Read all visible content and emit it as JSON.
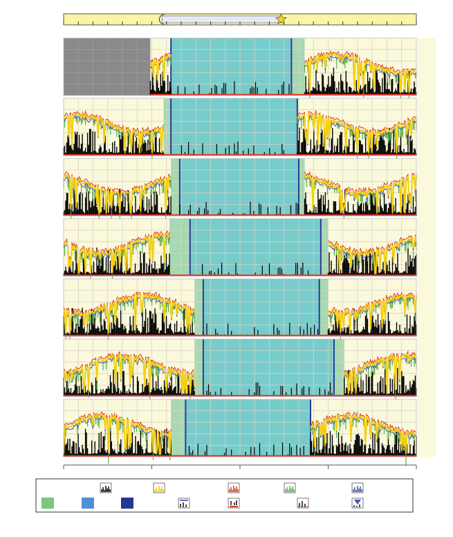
{
  "chart_data": {
    "type": "area",
    "title": "",
    "xlabel": "",
    "ylabel": "",
    "grid": true,
    "x_range": [
      0,
      24
    ],
    "y_range": [
      0,
      1
    ],
    "colors": {
      "background": "#fbf9dc",
      "grid": "#d7d3c4",
      "rest": "#78cbcb",
      "transition": "#a7d8b4",
      "boundary": "#2c3a94",
      "activity": "#000000",
      "trace_main": "#f5cf10",
      "trace_red": "#d83a2a",
      "trace_blue": "#3d57b8",
      "trace_green": "#57b04a",
      "baseline": "#e0321c",
      "legend_green": "#7cc67e",
      "legend_lightblue": "#4f8fd6",
      "legend_darkblue": "#283597"
    },
    "daylight_bar": {
      "sunset_icon": "crescent-moon-icon",
      "sunrise_icon": "sun-icon",
      "night_start": 6.7,
      "night_end": 14.8
    },
    "panels": [
      {
        "missing_until": 5.9,
        "rest_start": 7.3,
        "rest_end": 15.5,
        "trans_before": 0.0,
        "trans_after": 0.9
      },
      {
        "missing_until": 0,
        "rest_start": 7.3,
        "rest_end": 15.9,
        "trans_before": 0.5,
        "trans_after": 0.0
      },
      {
        "missing_until": 0,
        "rest_start": 7.9,
        "rest_end": 16.0,
        "trans_before": 0.6,
        "trans_after": 0.4
      },
      {
        "missing_until": 0,
        "rest_start": 8.6,
        "rest_end": 17.5,
        "trans_before": 1.4,
        "trans_after": 0.5
      },
      {
        "missing_until": 0,
        "rest_start": 9.5,
        "rest_end": 17.4,
        "trans_before": 0.6,
        "trans_after": 0.6
      },
      {
        "missing_until": 0,
        "rest_start": 9.5,
        "rest_end": 18.4,
        "trans_before": 0.6,
        "trans_after": 0.7
      },
      {
        "missing_until": 0,
        "rest_start": 8.3,
        "rest_end": 16.8,
        "trans_before": 1.0,
        "trans_after": 0.0
      }
    ],
    "legend": {
      "row1": [
        "activity-icon",
        "sun-icon",
        "red-series-icon",
        "green-series-icon",
        "blue-series-icon"
      ],
      "row2": [
        "green-swatch",
        "lightblue-swatch",
        "darkblue-swatch",
        "boundary-icon",
        "baseline-icon",
        "activity-dots-icon",
        "triangle-marker-icon"
      ]
    }
  }
}
